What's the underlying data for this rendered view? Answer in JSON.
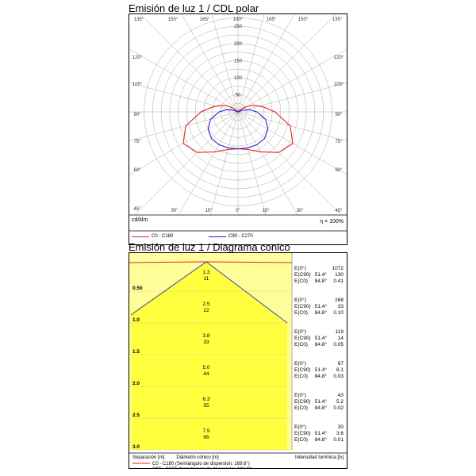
{
  "polar": {
    "title": "Emisión de luz 1 / CDL polar",
    "unit_label": "cd/klm",
    "efficiency": "η = 100%",
    "legend": [
      {
        "label": "C0 - C180",
        "color": "#e02020"
      },
      {
        "label": "C90 - C270",
        "color": "#2020e0"
      }
    ]
  },
  "cone": {
    "title": "Emisión de luz 1 / Diagrama conico",
    "footer": {
      "separation": "Separación [m]",
      "diameter": "Diámetro cónico [m]",
      "intensity": "Intensidad lumínica [lx]",
      "legend": [
        {
          "label": "C0 - C180 (Semiángulo de dispersión: 169.6°)",
          "color": "#e02020"
        },
        {
          "label": "C90 - C270 (Semiángulo de dispersión: 102.8°)",
          "color": "#2020e0"
        }
      ]
    }
  },
  "chart_data": [
    {
      "type": "polar",
      "title": "Emisión de luz 1 / CDL polar",
      "unit": "cd/klm",
      "radial_ticks": [
        50,
        100,
        150,
        200,
        250
      ],
      "rmax": 290,
      "angle_labels_top": [
        "135°",
        "150°",
        "165°",
        "180°",
        "165°",
        "150°",
        "135°"
      ],
      "angle_labels_side": [
        "120°",
        "105°",
        "90°",
        "75°",
        "60°",
        "45°"
      ],
      "angle_labels_bottom": [
        "45°",
        "30°",
        "15°",
        "0°",
        "15°",
        "30°",
        "45°"
      ],
      "gamma": [
        0,
        15,
        30,
        45,
        60,
        75,
        90,
        100,
        110,
        120,
        130,
        140,
        150,
        165,
        180
      ],
      "series": [
        {
          "name": "C0 - C180",
          "color": "#e02020",
          "values": [
            108,
            114,
            135,
            168,
            185,
            158,
            108,
            78,
            55,
            35,
            15,
            0,
            0,
            0,
            0
          ]
        },
        {
          "name": "C90 - C270",
          "color": "#2020e0",
          "values": [
            108,
            109,
            111,
            110,
            101,
            83,
            55,
            35,
            15,
            0,
            0,
            0,
            0,
            0,
            0
          ]
        }
      ],
      "efficiency": "η = 100%"
    },
    {
      "type": "table",
      "title": "Emisión de luz 1 / Diagrama conico",
      "rows": [
        {
          "separation": "0.50",
          "d1": "1.3",
          "d2": "11",
          "labels": [
            "E(0°)",
            "E(C90)",
            "E(C0)"
          ],
          "angles": [
            "",
            "51.4°",
            "84.8°"
          ],
          "values": [
            "1072",
            "130",
            "0.41"
          ]
        },
        {
          "separation": "1.0",
          "d1": "2.5",
          "d2": "22",
          "labels": [
            "E(0°)",
            "E(C90)",
            "E(C0)"
          ],
          "angles": [
            "",
            "51.4°",
            "84.8°"
          ],
          "values": [
            "268",
            "33",
            "0.10"
          ]
        },
        {
          "separation": "1.5",
          "d1": "3.8",
          "d2": "33",
          "labels": [
            "E(0°)",
            "E(C90)",
            "E(C0)"
          ],
          "angles": [
            "",
            "51.4°",
            "84.8°"
          ],
          "values": [
            "119",
            "14",
            "0.05"
          ]
        },
        {
          "separation": "2.0",
          "d1": "5.0",
          "d2": "44",
          "labels": [
            "E(0°)",
            "E(C90)",
            "E(C0)"
          ],
          "angles": [
            "",
            "51.4°",
            "84.8°"
          ],
          "values": [
            "67",
            "8.1",
            "0.03"
          ]
        },
        {
          "separation": "2.5",
          "d1": "6.3",
          "d2": "55",
          "labels": [
            "E(0°)",
            "E(C90)",
            "E(C0)"
          ],
          "angles": [
            "",
            "51.4°",
            "84.8°"
          ],
          "values": [
            "43",
            "5.2",
            "0.02"
          ]
        },
        {
          "separation": "3.0",
          "d1": "7.5",
          "d2": "66",
          "labels": [
            "E(0°)",
            "E(C90)",
            "E(C0)"
          ],
          "angles": [
            "",
            "51.4°",
            "84.8°"
          ],
          "values": [
            "30",
            "3.6",
            "0.01"
          ]
        }
      ],
      "half_angles": {
        "C0 - C180": 169.6,
        "C90 - C270": 102.8
      }
    }
  ]
}
